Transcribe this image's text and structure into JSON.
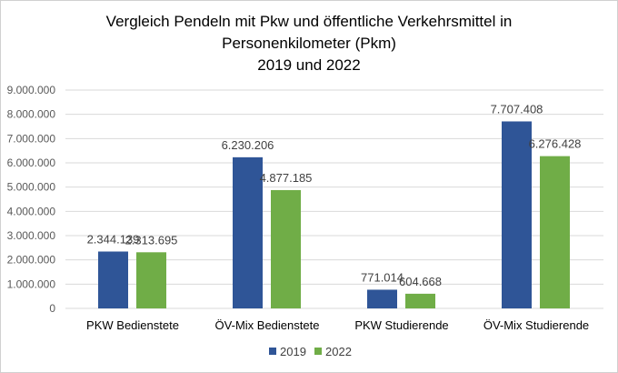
{
  "chart_data": {
    "type": "bar",
    "title": [
      "Vergleich Pendeln mit Pkw und öffentliche Verkehrsmittel in",
      "Personenkilometer (Pkm)",
      "2019 und 2022"
    ],
    "xlabel": "",
    "ylabel": "",
    "categories": [
      "PKW Bedienstete",
      "ÖV-Mix Bedienstete",
      "PKW Studierende",
      "ÖV-Mix Studierende"
    ],
    "series": [
      {
        "name": "2019",
        "color": "#2F5597",
        "values": [
          2344139,
          6230206,
          771014,
          7707408
        ],
        "labels": [
          "2.344.139",
          "6.230.206",
          "771.014",
          "7.707.408"
        ]
      },
      {
        "name": "2022",
        "color": "#70AD47",
        "values": [
          2313695,
          4877185,
          604668,
          6276428
        ],
        "labels": [
          "2.313.695",
          "4.877.185",
          "604.668",
          "6.276.428"
        ]
      }
    ],
    "ylim": [
      0,
      9000000
    ],
    "yticks": [
      "0",
      "1.000.000",
      "2.000.000",
      "3.000.000",
      "4.000.000",
      "5.000.000",
      "6.000.000",
      "7.000.000",
      "8.000.000",
      "9.000.000"
    ],
    "grid": true,
    "legend": "bottom"
  }
}
